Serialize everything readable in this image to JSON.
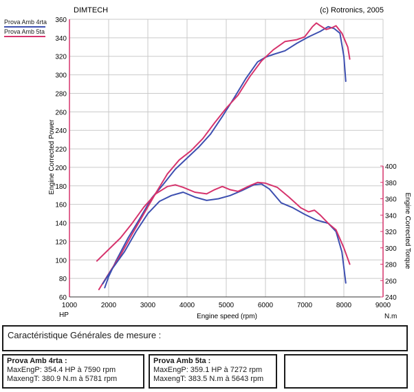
{
  "header": {
    "left": "DIMTECH",
    "right": "(c) Rotronics, 2005"
  },
  "legend": [
    {
      "name": "Prova Amb 4rta",
      "color": "#3d4fb0"
    },
    {
      "name": "Prova Amb 5ta",
      "color": "#d6336c"
    }
  ],
  "chart_data": {
    "type": "line",
    "xlabel": "Engine speed (rpm)",
    "ylabel_left": "Engine Corrected Power",
    "ylabel_right": "Engine Corrected Torque",
    "x_unit_left": "HP",
    "x_unit_right": "N.m",
    "xlim": [
      1000,
      9000
    ],
    "xticks": [
      1000,
      2000,
      3000,
      4000,
      5000,
      6000,
      7000,
      8000,
      9000
    ],
    "ylim_left": [
      60,
      360
    ],
    "yticks_left": [
      60,
      80,
      100,
      120,
      140,
      160,
      180,
      200,
      220,
      240,
      260,
      280,
      300,
      320,
      340,
      360
    ],
    "ylim_right": [
      240,
      400
    ],
    "yticks_right": [
      240,
      260,
      280,
      300,
      320,
      340,
      360,
      380,
      400
    ],
    "grid": true,
    "series": [
      {
        "name": "Prova Amb 4rta",
        "quantity": "power",
        "axis": "left",
        "color": "#3d4fb0",
        "x": [
          1900,
          2000,
          2200,
          2500,
          2800,
          3100,
          3400,
          3700,
          4000,
          4300,
          4600,
          4900,
          5200,
          5500,
          5800,
          6000,
          6200,
          6500,
          6800,
          7100,
          7400,
          7600,
          7750,
          7900,
          8000,
          8050
        ],
        "y": [
          70,
          82,
          100,
          124,
          145,
          167,
          182,
          198,
          210,
          222,
          236,
          255,
          275,
          296,
          314,
          319,
          322,
          326,
          334,
          341,
          347,
          352,
          350,
          345,
          320,
          293
        ]
      },
      {
        "name": "Prova Amb 5ta",
        "quantity": "power",
        "axis": "left",
        "color": "#d6336c",
        "x": [
          1750,
          2000,
          2300,
          2600,
          2900,
          3200,
          3500,
          3800,
          4100,
          4400,
          4700,
          5000,
          5300,
          5600,
          5900,
          6200,
          6500,
          6800,
          7000,
          7200,
          7300,
          7400,
          7550,
          7700,
          7800,
          7950,
          8100,
          8150
        ],
        "y": [
          68,
          85,
          105,
          128,
          150,
          172,
          193,
          208,
          218,
          231,
          248,
          264,
          278,
          298,
          315,
          327,
          336,
          338,
          341,
          352,
          356,
          353,
          349,
          351,
          353,
          345,
          330,
          317
        ]
      },
      {
        "name": "Prova Amb 4rta",
        "quantity": "torque",
        "axis": "right",
        "color": "#3d4fb0",
        "x": [
          1850,
          2100,
          2400,
          2700,
          3000,
          3300,
          3600,
          3900,
          4200,
          4500,
          4800,
          5100,
          5400,
          5700,
          5900,
          6100,
          6400,
          6700,
          7000,
          7300,
          7600,
          7800,
          7950,
          8050
        ],
        "y": [
          256,
          275,
          295,
          320,
          342,
          357,
          364,
          368,
          362,
          358,
          360,
          364,
          370,
          377,
          378,
          372,
          355,
          349,
          341,
          334,
          330,
          320,
          295,
          257
        ]
      },
      {
        "name": "Prova Amb 5ta",
        "quantity": "torque",
        "axis": "right",
        "color": "#d6336c",
        "x": [
          1700,
          2000,
          2300,
          2600,
          2900,
          3200,
          3500,
          3700,
          3900,
          4200,
          4500,
          4700,
          4900,
          5100,
          5300,
          5600,
          5800,
          6000,
          6300,
          6600,
          6900,
          7100,
          7250,
          7400,
          7600,
          7800,
          8000,
          8150
        ],
        "y": [
          284,
          298,
          312,
          330,
          350,
          366,
          375,
          377,
          374,
          368,
          366,
          371,
          375,
          371,
          369,
          376,
          380,
          379,
          374,
          362,
          349,
          344,
          346,
          340,
          330,
          322,
          300,
          280
        ]
      }
    ]
  },
  "measure_box": {
    "title": "Caractéristique Générales de mesure :"
  },
  "results": [
    {
      "name": "Prova Amb 4rta :",
      "power": "MaxEngP:  354.4 HP à 7590 rpm",
      "torque": "MaxengT:  380.9 N.m à 5781 rpm"
    },
    {
      "name": "Prova Amb 5ta :",
      "power": "MaxEngP:  359.1 HP à 7272 rpm",
      "torque": "MaxengT:  383.5 N.m à 5643 rpm"
    }
  ]
}
